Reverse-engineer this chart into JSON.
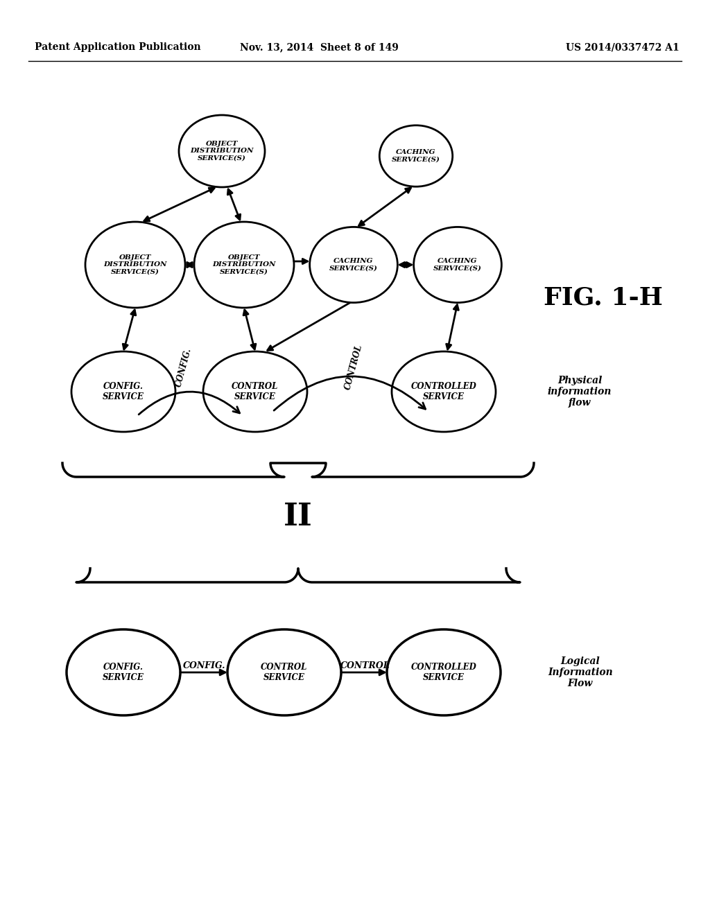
{
  "header_left": "Patent Application Publication",
  "header_mid": "Nov. 13, 2014  Sheet 8 of 149",
  "header_right": "US 2014/0337472 A1",
  "fig_label": "FIG. 1-H",
  "background": "#ffffff",
  "physical_label": "Physical\ninformation\nflow",
  "logical_label": "Logical\nInformation\nFlow",
  "equals_sign": "II"
}
